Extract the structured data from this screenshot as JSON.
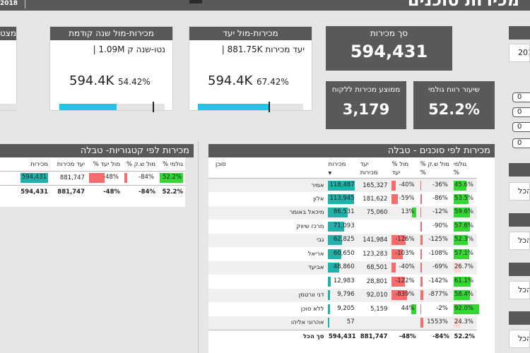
{
  "header": {
    "year_text": "2018",
    "title": "מכירות סוכנים"
  },
  "kpis": {
    "partial_left_title": "מצט",
    "prev_year": {
      "title": "מכירות-מול שנה קודמת",
      "subtitle": "נטו-שנה ק 1.09M |",
      "value": "594.4K",
      "percent": "54.42%",
      "progress_fraction": 0.5442
    },
    "target": {
      "title": "מכירות-מול יעד",
      "subtitle": "יעד מכירות 881.75K |",
      "value": "594.4K",
      "percent": "67.42%",
      "progress_fraction": 0.6742
    },
    "total_sales": {
      "label": "סך מכירות",
      "value": "594,431"
    },
    "avg_per_customer": {
      "label": "ממוצע מכירות ללקוח",
      "value": "3,179"
    },
    "gross_margin": {
      "label": "שיעור רווח גולמי",
      "value": "52.2%"
    }
  },
  "category_table": {
    "title": "מכירות לפי קטגוריות- טבלה",
    "headers": {
      "sales": "מכירות",
      "target": "יעד מכירות",
      "vs_target": "% מול יעד",
      "vs_py": "% מול ש.ק",
      "gross": "% גולמי"
    },
    "row": {
      "sales": "594,431",
      "target": "881,747",
      "vs_target": "-48%",
      "vs_py": "-84%",
      "gross": "52.2%",
      "sales_fraction": 1.0,
      "vs_target_value": -48,
      "vs_py_value": -84
    },
    "total": {
      "sales": "594,431",
      "target": "881,747",
      "vs_target": "-48%",
      "vs_py": "-84%",
      "gross": "52.2%"
    }
  },
  "agent_table": {
    "title": "מכירות לפי סוכנים - טבלה",
    "headers": {
      "agent": "סוכן",
      "sales": "מכירות",
      "target_l1": "יעד",
      "target_l2": "מכירות",
      "vs_target_l1": "% מול",
      "vs_target_l2": "יעד",
      "vs_py_l1": "% מול ש.ק",
      "vs_py_l2": "%",
      "gross_l1": "גולמי",
      "gross_l2": "%",
      "sort_arrow": "▼"
    },
    "rows": [
      {
        "agent": "אמיר",
        "sales": "118,487",
        "target": "165,327",
        "vs_target": "-40%",
        "vs_py": "-36%",
        "gross": "45.6%",
        "sales_v": 118487,
        "vt_v": -40,
        "vpy_v": -36,
        "g_v": 45.6
      },
      {
        "agent": "אלון",
        "sales": "113,945",
        "target": "181,622",
        "vs_target": "-59%",
        "vs_py": "-86%",
        "gross": "53.5%",
        "sales_v": 113945,
        "vt_v": -59,
        "vpy_v": -86,
        "g_v": 53.5
      },
      {
        "agent": "מיכאל באומר",
        "sales": "86,531",
        "target": "75,060",
        "vs_target": "13%",
        "vs_py": "-12%",
        "gross": "59.6%",
        "sales_v": 86531,
        "vt_v": 13,
        "vpy_v": -12,
        "g_v": 59.6
      },
      {
        "agent": "מרכז שיווק",
        "sales": "71,093",
        "target": "",
        "vs_target": "",
        "vs_py": "-90%",
        "gross": "57.6%",
        "sales_v": 71093,
        "vt_v": 0,
        "vpy_v": -90,
        "g_v": 57.6
      },
      {
        "agent": "גבי",
        "sales": "62,825",
        "target": "141,984",
        "vs_target": "-126%",
        "vs_py": "-125%",
        "gross": "52.3%",
        "sales_v": 62825,
        "vt_v": -126,
        "vpy_v": -125,
        "g_v": 52.3
      },
      {
        "agent": "אריאל",
        "sales": "60,650",
        "target": "123,283",
        "vs_target": "-103%",
        "vs_py": "-108%",
        "gross": "57.1%",
        "sales_v": 60650,
        "vt_v": -103,
        "vpy_v": -108,
        "g_v": 57.1
      },
      {
        "agent": "אביעד",
        "sales": "48,860",
        "target": "68,501",
        "vs_target": "-40%",
        "vs_py": "-69%",
        "gross": "26.7%",
        "sales_v": 48860,
        "vt_v": -40,
        "vpy_v": -69,
        "g_v": 26.7
      },
      {
        "agent": "",
        "sales": "12,983",
        "target": "28,801",
        "vs_target": "-122%",
        "vs_py": "-142%",
        "gross": "61.1%",
        "sales_v": 12983,
        "vt_v": -122,
        "vpy_v": -142,
        "g_v": 61.1
      },
      {
        "agent": "דני וורטמן",
        "sales": "9,796",
        "target": "92,010",
        "vs_target": "-839%",
        "vs_py": "-877%",
        "gross": "58.4%",
        "sales_v": 9796,
        "vt_v": -839,
        "vpy_v": -877,
        "g_v": 58.4
      },
      {
        "agent": "ללא סוכן",
        "sales": "9,205",
        "target": "5,159",
        "vs_target": "44%",
        "vs_py": "-2%",
        "gross": "92.0%",
        "sales_v": 9205,
        "vt_v": 44,
        "vpy_v": -2,
        "g_v": 92.0
      },
      {
        "agent": "אהרוני אליהו",
        "sales": "57",
        "target": "",
        "vs_target": "",
        "vs_py": "1553%",
        "gross": "24.3%",
        "sales_v": 57,
        "vt_v": 0,
        "vpy_v": 1553,
        "g_v": 24.3
      }
    ],
    "total": {
      "agent": "סך הכל",
      "sales": "594,431",
      "target": "881,747",
      "vs_target": "-48%",
      "vs_py": "-84%",
      "gross": "52.2%"
    }
  },
  "right_filters": {
    "year_value": "201",
    "pills": [
      "0",
      "0",
      "0",
      "0"
    ],
    "all_label": "הכל"
  },
  "colors": {
    "header_bg": "#595959",
    "progress": "#22c4e8",
    "teal": "#20b2aa",
    "red": "#f46c6c",
    "green": "#33d633",
    "pink": "#fbd8d8"
  }
}
